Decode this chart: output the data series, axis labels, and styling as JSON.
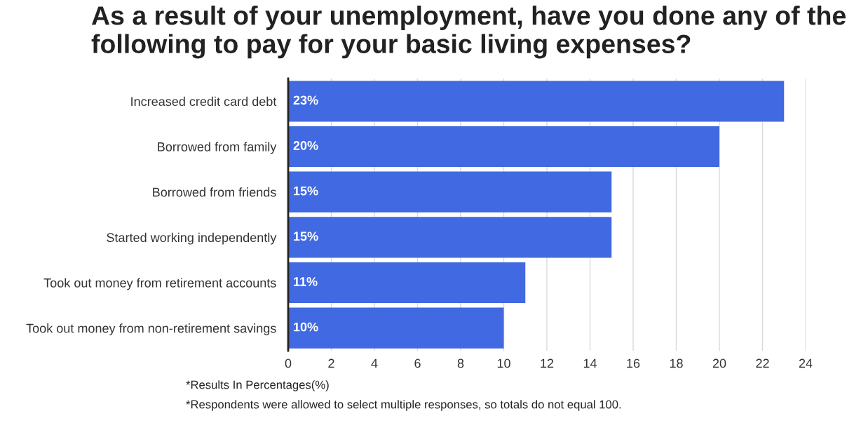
{
  "chart_data": {
    "type": "bar",
    "orientation": "horizontal",
    "title": "As a result of your unemployment, have you done any of the following to pay for your basic living expenses?",
    "categories": [
      "Increased credit card debt",
      "Borrowed from family",
      "Borrowed from friends",
      "Started working independently",
      "Took out money from retirement accounts",
      "Took out money from non-retirement savings"
    ],
    "values": [
      23,
      20,
      15,
      15,
      11,
      10
    ],
    "value_labels": [
      "23%",
      "20%",
      "15%",
      "15%",
      "11%",
      "10%"
    ],
    "color": "#4169e1",
    "xlim": [
      0,
      24
    ],
    "xticks": [
      0,
      2,
      4,
      6,
      8,
      10,
      12,
      14,
      16,
      18,
      20,
      22,
      24
    ],
    "grid": "x",
    "annotations": [
      "*Results In Percentages(%)",
      "*Respondents were allowed to select multiple responses, so totals do not equal 100."
    ]
  }
}
